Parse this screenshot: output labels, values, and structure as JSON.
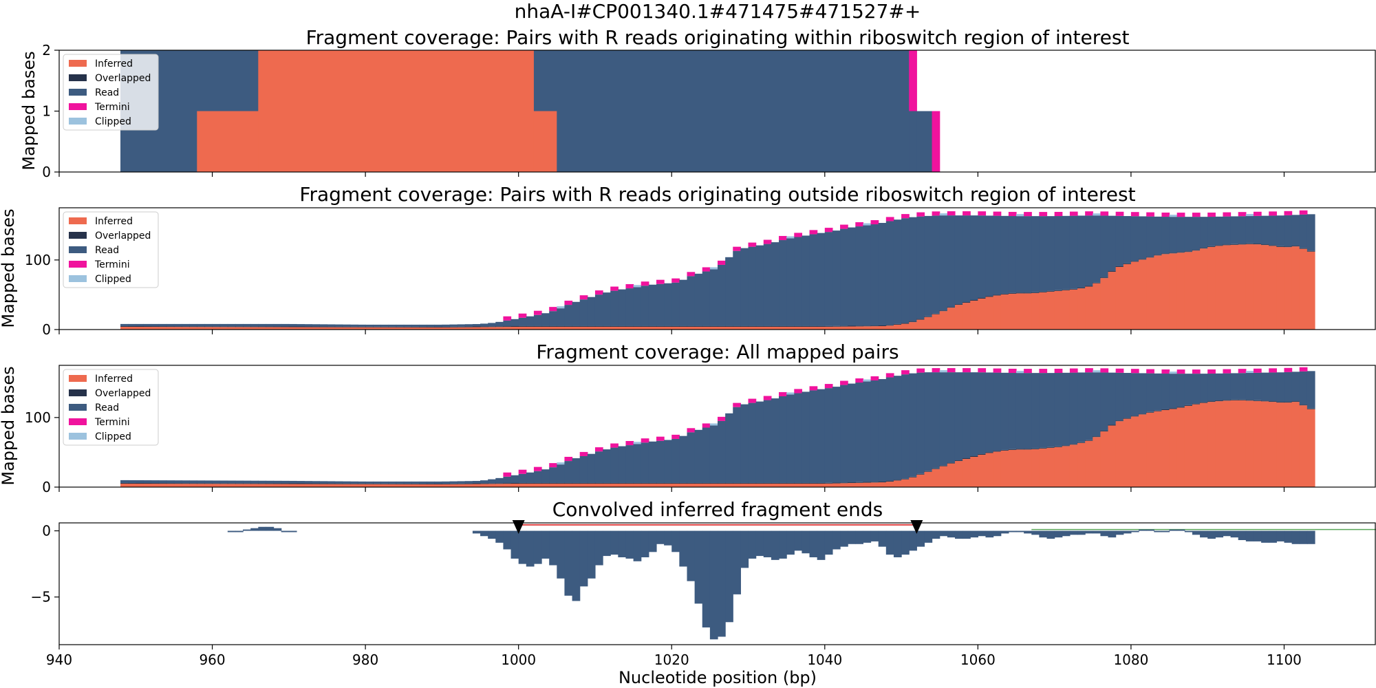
{
  "figure": {
    "suptitle": "nhaA-I#CP001340.1#471475#471527#+"
  },
  "colors": {
    "inferred": "#ee6a4f",
    "overlapped": "#26324a",
    "read": "#3d5b80",
    "termini": "#f0139d",
    "clipped": "#9cc2de",
    "convolved": "#3d5b80",
    "marker": "#000000",
    "roi_line": "#e04040",
    "green_line": "#5aa55a"
  },
  "legend": [
    "Inferred",
    "Overlapped",
    "Read",
    "Termini",
    "Clipped"
  ],
  "chart_data": [
    {
      "type": "area",
      "stacked": true,
      "title": "Fragment coverage: Pairs with R reads originating within riboswitch region of interest",
      "xlabel": "",
      "ylabel": "Mapped bases",
      "xlim": [
        940,
        1112
      ],
      "ylim": [
        0,
        2
      ],
      "yticks": [
        0,
        1,
        2
      ],
      "legend_position": "upper-left",
      "segments": [
        {
          "x0": 948,
          "x1": 958,
          "inferred": 0,
          "read": 2,
          "termini": 0,
          "clipped": 0
        },
        {
          "x0": 958,
          "x1": 966,
          "inferred": 1,
          "read": 1,
          "termini": 0,
          "clipped": 0
        },
        {
          "x0": 966,
          "x1": 1002,
          "inferred": 2,
          "read": 0,
          "termini": 0,
          "clipped": 0
        },
        {
          "x0": 1002,
          "x1": 1005,
          "inferred": 1,
          "read": 1,
          "termini": 0,
          "clipped": 0
        },
        {
          "x0": 1005,
          "x1": 1051,
          "inferred": 0,
          "read": 2,
          "termini": 0,
          "clipped": 0
        },
        {
          "x0": 1051,
          "x1": 1052,
          "inferred": 0,
          "read": 1,
          "termini": 1,
          "clipped": 0
        },
        {
          "x0": 1052,
          "x1": 1054,
          "inferred": 0,
          "read": 1,
          "termini": 0,
          "clipped": 0
        },
        {
          "x0": 1054,
          "x1": 1055,
          "inferred": 0,
          "read": 0,
          "termini": 1,
          "clipped": 0
        }
      ]
    },
    {
      "type": "area",
      "stacked": true,
      "title": "Fragment coverage: Pairs with R reads originating outside riboswitch region of interest",
      "xlabel": "",
      "ylabel": "Mapped bases",
      "xlim": [
        940,
        1112
      ],
      "ylim": [
        0,
        175
      ],
      "yticks": [
        0,
        100
      ],
      "legend_position": "upper-left",
      "x_start": 948,
      "x_end": 1104,
      "total": [
        [
          948,
          8
        ],
        [
          970,
          8
        ],
        [
          980,
          7
        ],
        [
          990,
          7
        ],
        [
          995,
          8
        ],
        [
          997,
          10
        ],
        [
          999,
          14
        ],
        [
          1001,
          18
        ],
        [
          1003,
          22
        ],
        [
          1005,
          28
        ],
        [
          1007,
          38
        ],
        [
          1009,
          45
        ],
        [
          1011,
          52
        ],
        [
          1013,
          57
        ],
        [
          1015,
          60
        ],
        [
          1017,
          64
        ],
        [
          1019,
          66
        ],
        [
          1021,
          68
        ],
        [
          1022,
          75
        ],
        [
          1024,
          82
        ],
        [
          1026,
          88
        ],
        [
          1027,
          98
        ],
        [
          1028,
          110
        ],
        [
          1029,
          116
        ],
        [
          1031,
          120
        ],
        [
          1033,
          124
        ],
        [
          1035,
          130
        ],
        [
          1037,
          134
        ],
        [
          1039,
          138
        ],
        [
          1041,
          141
        ],
        [
          1043,
          146
        ],
        [
          1045,
          149
        ],
        [
          1047,
          152
        ],
        [
          1049,
          157
        ],
        [
          1051,
          161
        ],
        [
          1053,
          163
        ],
        [
          1055,
          164
        ],
        [
          1060,
          164
        ],
        [
          1065,
          163
        ],
        [
          1070,
          163
        ],
        [
          1075,
          164
        ],
        [
          1080,
          163
        ],
        [
          1085,
          162
        ],
        [
          1090,
          162
        ],
        [
          1095,
          163
        ],
        [
          1100,
          164
        ],
        [
          1104,
          166
        ]
      ],
      "inferred": [
        [
          948,
          4
        ],
        [
          990,
          3
        ],
        [
          1000,
          4
        ],
        [
          1040,
          4
        ],
        [
          1048,
          5
        ],
        [
          1051,
          9
        ],
        [
          1053,
          16
        ],
        [
          1055,
          24
        ],
        [
          1057,
          34
        ],
        [
          1059,
          40
        ],
        [
          1061,
          46
        ],
        [
          1063,
          50
        ],
        [
          1065,
          52
        ],
        [
          1067,
          52
        ],
        [
          1069,
          54
        ],
        [
          1071,
          56
        ],
        [
          1073,
          58
        ],
        [
          1075,
          63
        ],
        [
          1076,
          70
        ],
        [
          1077,
          78
        ],
        [
          1078,
          88
        ],
        [
          1080,
          96
        ],
        [
          1082,
          102
        ],
        [
          1084,
          108
        ],
        [
          1086,
          110
        ],
        [
          1088,
          112
        ],
        [
          1090,
          118
        ],
        [
          1092,
          121
        ],
        [
          1094,
          122
        ],
        [
          1096,
          123
        ],
        [
          1098,
          121
        ],
        [
          1100,
          118
        ],
        [
          1102,
          120
        ],
        [
          1103,
          112
        ],
        [
          1104,
          112
        ]
      ],
      "termini_band": 6,
      "clipped_band": 3
    },
    {
      "type": "area",
      "stacked": true,
      "title": "Fragment coverage: All mapped pairs",
      "xlabel": "",
      "ylabel": "Mapped bases",
      "xlim": [
        940,
        1112
      ],
      "ylim": [
        0,
        175
      ],
      "yticks": [
        0,
        100
      ],
      "legend_position": "upper-left",
      "x_start": 948,
      "x_end": 1104,
      "total": [
        [
          948,
          10
        ],
        [
          970,
          9
        ],
        [
          980,
          8
        ],
        [
          990,
          8
        ],
        [
          995,
          9
        ],
        [
          997,
          12
        ],
        [
          999,
          16
        ],
        [
          1001,
          20
        ],
        [
          1003,
          24
        ],
        [
          1005,
          30
        ],
        [
          1007,
          40
        ],
        [
          1009,
          46
        ],
        [
          1011,
          53
        ],
        [
          1013,
          58
        ],
        [
          1015,
          61
        ],
        [
          1017,
          65
        ],
        [
          1019,
          67
        ],
        [
          1021,
          70
        ],
        [
          1022,
          77
        ],
        [
          1024,
          84
        ],
        [
          1026,
          90
        ],
        [
          1027,
          100
        ],
        [
          1028,
          112
        ],
        [
          1029,
          118
        ],
        [
          1031,
          122
        ],
        [
          1033,
          126
        ],
        [
          1035,
          132
        ],
        [
          1037,
          136
        ],
        [
          1039,
          140
        ],
        [
          1041,
          143
        ],
        [
          1043,
          148
        ],
        [
          1045,
          151
        ],
        [
          1047,
          154
        ],
        [
          1049,
          159
        ],
        [
          1051,
          163
        ],
        [
          1053,
          165
        ],
        [
          1055,
          165
        ],
        [
          1060,
          165
        ],
        [
          1065,
          164
        ],
        [
          1070,
          164
        ],
        [
          1075,
          165
        ],
        [
          1080,
          164
        ],
        [
          1085,
          163
        ],
        [
          1090,
          163
        ],
        [
          1095,
          164
        ],
        [
          1100,
          165
        ],
        [
          1104,
          167
        ]
      ],
      "inferred": [
        [
          948,
          5
        ],
        [
          990,
          4
        ],
        [
          1000,
          5
        ],
        [
          1040,
          5
        ],
        [
          1048,
          7
        ],
        [
          1051,
          12
        ],
        [
          1053,
          20
        ],
        [
          1055,
          28
        ],
        [
          1057,
          36
        ],
        [
          1059,
          42
        ],
        [
          1061,
          48
        ],
        [
          1063,
          52
        ],
        [
          1065,
          54
        ],
        [
          1067,
          54
        ],
        [
          1069,
          56
        ],
        [
          1071,
          58
        ],
        [
          1073,
          62
        ],
        [
          1075,
          68
        ],
        [
          1076,
          76
        ],
        [
          1077,
          84
        ],
        [
          1078,
          93
        ],
        [
          1080,
          100
        ],
        [
          1082,
          106
        ],
        [
          1084,
          110
        ],
        [
          1086,
          113
        ],
        [
          1088,
          118
        ],
        [
          1090,
          122
        ],
        [
          1092,
          124
        ],
        [
          1094,
          125
        ],
        [
          1096,
          124
        ],
        [
          1098,
          123
        ],
        [
          1100,
          121
        ],
        [
          1102,
          123
        ],
        [
          1103,
          112
        ],
        [
          1104,
          112
        ]
      ],
      "termini_band": 6,
      "clipped_band": 3
    },
    {
      "type": "bar",
      "title": "Convolved inferred fragment ends",
      "xlabel": "Nucleotide position (bp)",
      "ylabel": "",
      "xlim": [
        940,
        1112
      ],
      "ylim": [
        -8.6,
        0.6
      ],
      "yticks": [
        0,
        -5
      ],
      "xticks": [
        940,
        960,
        980,
        1000,
        1020,
        1040,
        1060,
        1080,
        1100
      ],
      "markers": [
        1000,
        1052
      ],
      "roi": [
        1000,
        1052
      ],
      "green_line": [
        1067,
        1112
      ],
      "values": [
        [
          962,
          -0.1
        ],
        [
          963,
          -0.1
        ],
        [
          964,
          0.1
        ],
        [
          965,
          0.2
        ],
        [
          966,
          0.3
        ],
        [
          967,
          0.3
        ],
        [
          968,
          0.2
        ],
        [
          969,
          -0.1
        ],
        [
          970,
          -0.1
        ],
        [
          994,
          -0.2
        ],
        [
          995,
          -0.4
        ],
        [
          996,
          -0.6
        ],
        [
          997,
          -0.9
        ],
        [
          998,
          -1.4
        ],
        [
          999,
          -2.1
        ],
        [
          1000,
          -2.5
        ],
        [
          1001,
          -2.7
        ],
        [
          1002,
          -2.5
        ],
        [
          1003,
          -2.1
        ],
        [
          1004,
          -2.6
        ],
        [
          1005,
          -3.6
        ],
        [
          1006,
          -4.9
        ],
        [
          1007,
          -5.3
        ],
        [
          1008,
          -4.2
        ],
        [
          1009,
          -3.6
        ],
        [
          1010,
          -2.6
        ],
        [
          1011,
          -1.9
        ],
        [
          1012,
          -1.8
        ],
        [
          1013,
          -2.0
        ],
        [
          1014,
          -2.1
        ],
        [
          1015,
          -2.3
        ],
        [
          1016,
          -2.0
        ],
        [
          1017,
          -1.6
        ],
        [
          1018,
          -1.0
        ],
        [
          1019,
          -1.1
        ],
        [
          1020,
          -1.6
        ],
        [
          1021,
          -2.7
        ],
        [
          1022,
          -3.8
        ],
        [
          1023,
          -5.5
        ],
        [
          1024,
          -7.3
        ],
        [
          1025,
          -8.2
        ],
        [
          1026,
          -8.0
        ],
        [
          1027,
          -6.9
        ],
        [
          1028,
          -4.8
        ],
        [
          1029,
          -2.8
        ],
        [
          1030,
          -2.1
        ],
        [
          1031,
          -1.9
        ],
        [
          1032,
          -2.0
        ],
        [
          1033,
          -2.2
        ],
        [
          1034,
          -2.1
        ],
        [
          1035,
          -1.8
        ],
        [
          1036,
          -1.5
        ],
        [
          1037,
          -1.7
        ],
        [
          1038,
          -2.0
        ],
        [
          1039,
          -2.2
        ],
        [
          1040,
          -1.8
        ],
        [
          1041,
          -1.4
        ],
        [
          1042,
          -1.2
        ],
        [
          1043,
          -1.0
        ],
        [
          1044,
          -1.0
        ],
        [
          1045,
          -0.9
        ],
        [
          1046,
          -0.8
        ],
        [
          1047,
          -1.2
        ],
        [
          1048,
          -1.8
        ],
        [
          1049,
          -2.0
        ],
        [
          1050,
          -1.8
        ],
        [
          1051,
          -1.5
        ],
        [
          1052,
          -1.2
        ],
        [
          1053,
          -0.9
        ],
        [
          1054,
          -0.6
        ],
        [
          1055,
          -0.4
        ],
        [
          1056,
          -0.5
        ],
        [
          1057,
          -0.6
        ],
        [
          1058,
          -0.6
        ],
        [
          1059,
          -0.5
        ],
        [
          1060,
          -0.4
        ],
        [
          1061,
          -0.5
        ],
        [
          1062,
          -0.4
        ],
        [
          1063,
          -0.2
        ],
        [
          1064,
          -0.1
        ],
        [
          1065,
          -0.1
        ],
        [
          1066,
          -0.2
        ],
        [
          1067,
          -0.3
        ],
        [
          1068,
          -0.5
        ],
        [
          1069,
          -0.6
        ],
        [
          1070,
          -0.5
        ],
        [
          1071,
          -0.4
        ],
        [
          1072,
          -0.3
        ],
        [
          1073,
          -0.3
        ],
        [
          1074,
          -0.2
        ],
        [
          1075,
          -0.2
        ],
        [
          1076,
          -0.4
        ],
        [
          1077,
          -0.5
        ],
        [
          1078,
          -0.3
        ],
        [
          1079,
          -0.2
        ],
        [
          1080,
          -0.1
        ],
        [
          1081,
          0.1
        ],
        [
          1082,
          0.1
        ],
        [
          1083,
          -0.1
        ],
        [
          1084,
          -0.1
        ],
        [
          1085,
          0.1
        ],
        [
          1086,
          0.1
        ],
        [
          1087,
          -0.1
        ],
        [
          1088,
          -0.3
        ],
        [
          1089,
          -0.5
        ],
        [
          1090,
          -0.6
        ],
        [
          1091,
          -0.5
        ],
        [
          1092,
          -0.4
        ],
        [
          1093,
          -0.5
        ],
        [
          1094,
          -0.7
        ],
        [
          1095,
          -0.8
        ],
        [
          1096,
          -0.8
        ],
        [
          1097,
          -0.9
        ],
        [
          1098,
          -0.9
        ],
        [
          1099,
          -0.8
        ],
        [
          1100,
          -0.9
        ],
        [
          1101,
          -1.0
        ],
        [
          1102,
          -1.0
        ],
        [
          1103,
          -1.0
        ]
      ]
    }
  ]
}
